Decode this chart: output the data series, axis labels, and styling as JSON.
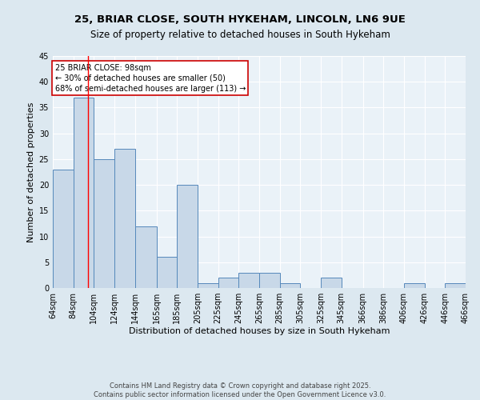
{
  "title": "25, BRIAR CLOSE, SOUTH HYKEHAM, LINCOLN, LN6 9UE",
  "subtitle": "Size of property relative to detached houses in South Hykeham",
  "xlabel": "Distribution of detached houses by size in South Hykeham",
  "ylabel": "Number of detached properties",
  "bar_values": [
    23,
    37,
    25,
    27,
    12,
    6,
    20,
    1,
    2,
    3,
    3,
    1,
    0,
    2,
    0,
    0,
    0,
    1,
    0,
    1
  ],
  "bin_edges": [
    64,
    84,
    104,
    124,
    144,
    165,
    185,
    205,
    225,
    245,
    265,
    285,
    305,
    325,
    345,
    366,
    386,
    406,
    426,
    446,
    466
  ],
  "bar_color": "#c8d8e8",
  "bar_edge_color": "#5588bb",
  "red_line_x": 98,
  "annotation_text": "25 BRIAR CLOSE: 98sqm\n← 30% of detached houses are smaller (50)\n68% of semi-detached houses are larger (113) →",
  "annotation_box_color": "#ffffff",
  "annotation_box_edge_color": "#cc0000",
  "ylim": [
    0,
    45
  ],
  "yticks": [
    0,
    5,
    10,
    15,
    20,
    25,
    30,
    35,
    40,
    45
  ],
  "background_color": "#dce8f0",
  "plot_bg_color": "#eaf2f8",
  "grid_color": "#ffffff",
  "footer_text": "Contains HM Land Registry data © Crown copyright and database right 2025.\nContains public sector information licensed under the Open Government Licence v3.0.",
  "title_fontsize": 9.5,
  "subtitle_fontsize": 8.5,
  "xlabel_fontsize": 8,
  "ylabel_fontsize": 8,
  "tick_fontsize": 7,
  "annotation_fontsize": 7,
  "footer_fontsize": 6
}
